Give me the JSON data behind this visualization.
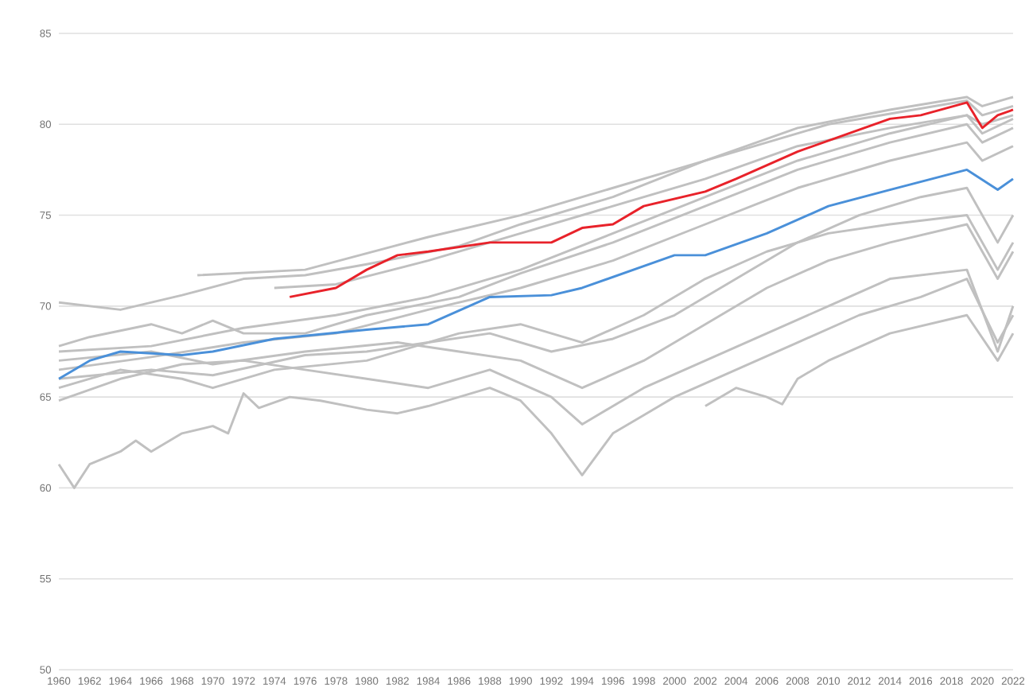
{
  "chart_data": {
    "type": "line",
    "xlim": [
      1960,
      2022
    ],
    "ylim": [
      50,
      85
    ],
    "xticks": [
      1960,
      1962,
      1964,
      1966,
      1968,
      1970,
      1972,
      1974,
      1976,
      1978,
      1980,
      1982,
      1984,
      1986,
      1988,
      1990,
      1992,
      1994,
      1996,
      1998,
      2000,
      2002,
      2004,
      2006,
      2008,
      2010,
      2012,
      2014,
      2016,
      2018,
      2020,
      2022
    ],
    "yticks": [
      50,
      55,
      60,
      65,
      70,
      75,
      80,
      85
    ],
    "grid": "y",
    "series": [
      {
        "color": "#c0c0c0",
        "x": [
          1960,
          1964,
          1968,
          1972,
          1976,
          1980,
          1986,
          1990,
          1996,
          2002,
          2008,
          2014,
          2019,
          2020,
          2022
        ],
        "values": [
          70.2,
          69.8,
          70.6,
          71.5,
          71.7,
          72.3,
          73.3,
          74.5,
          76,
          78,
          79.8,
          80.8,
          81.5,
          81,
          81.5
        ]
      },
      {
        "color": "#c0c0c0",
        "x": [
          1969,
          1976,
          1984,
          1990,
          2000,
          2010,
          2019,
          2020,
          2022
        ],
        "values": [
          71.7,
          72,
          73.8,
          75,
          77.5,
          80,
          81.3,
          80.5,
          81
        ]
      },
      {
        "color": "#c0c0c0",
        "x": [
          1960,
          1962,
          1966,
          1968,
          1970,
          1972,
          1976,
          1980,
          1986,
          1990,
          1996,
          2002,
          2008,
          2014,
          2019,
          2020,
          2022
        ],
        "values": [
          67.8,
          68.3,
          69,
          68.5,
          69.2,
          68.5,
          68.5,
          69.5,
          70.5,
          71.8,
          73.5,
          75.5,
          77.5,
          79,
          80,
          79,
          79.8
        ]
      },
      {
        "color": "#c0c0c0",
        "x": [
          1960,
          1961,
          1962,
          1964,
          1965,
          1966,
          1968,
          1970,
          1971,
          1972,
          1973,
          1975,
          1977,
          1980,
          1982,
          1984,
          1986,
          1988,
          1990,
          1992,
          1994,
          1996,
          1998,
          2000,
          2004,
          2008,
          2012,
          2016,
          2019,
          2021,
          2022
        ],
        "values": [
          61.3,
          60,
          61.3,
          62,
          62.6,
          62,
          63,
          63.4,
          63,
          65.2,
          64.4,
          65,
          64.8,
          64.3,
          64.1,
          64.5,
          65,
          65.5,
          64.8,
          63,
          60.7,
          63,
          64,
          65,
          66.5,
          68,
          69.5,
          70.5,
          71.5,
          68,
          69.5
        ]
      },
      {
        "color": "#c0c0c0",
        "x": [
          1960,
          1964,
          1968,
          1972,
          1976,
          1980,
          1984,
          1988,
          1992,
          1994,
          1996,
          1998,
          2002,
          2006,
          2010,
          2014,
          2019,
          2021,
          2022
        ],
        "values": [
          64.8,
          66,
          66.8,
          67,
          66.5,
          66,
          65.5,
          66.5,
          65,
          63.5,
          64.5,
          65.5,
          67,
          68.5,
          70,
          71.5,
          72,
          67.5,
          70
        ]
      },
      {
        "color": "#c0c0c0",
        "x": [
          2002,
          2004,
          2006,
          2007,
          2008,
          2010,
          2014,
          2019,
          2021,
          2022
        ],
        "values": [
          64.5,
          65.5,
          65,
          64.6,
          66,
          67,
          68.5,
          69.5,
          67,
          68.5
        ]
      },
      {
        "color": "#c0c0c0",
        "x": [
          1960,
          1966,
          1970,
          1976,
          1982,
          1986,
          1990,
          1994,
          1998,
          2002,
          2006,
          2010,
          2014,
          2019,
          2021,
          2022
        ],
        "values": [
          67,
          67.5,
          66.8,
          67.5,
          68,
          67.5,
          67,
          65.5,
          67,
          69,
          71,
          72.5,
          73.5,
          74.5,
          71.5,
          73
        ]
      },
      {
        "color": "#c0c0c0",
        "x": [
          1960,
          1966,
          1972,
          1978,
          1984,
          1990,
          1996,
          2002,
          2008,
          2014,
          2019,
          2020,
          2022
        ],
        "values": [
          67.5,
          67.8,
          68.8,
          69.5,
          70.5,
          72,
          74,
          76,
          78,
          79.5,
          80.5,
          79.5,
          80.3
        ]
      },
      {
        "color": "#c0c0c0",
        "x": [
          1960,
          1966,
          1972,
          1978,
          1984,
          1990,
          1996,
          2002,
          2008,
          2014,
          2019,
          2020,
          2022
        ],
        "values": [
          66.5,
          67.2,
          68,
          68.5,
          69.8,
          71,
          72.5,
          74.5,
          76.5,
          78,
          79,
          78,
          78.8
        ]
      },
      {
        "color": "#c0c0c0",
        "x": [
          1960,
          1966,
          1970,
          1976,
          1980,
          1984,
          1988,
          1992,
          1996,
          2000,
          2004,
          2008,
          2012,
          2016,
          2019,
          2021,
          2022
        ],
        "values": [
          66,
          66.5,
          66.2,
          67.3,
          67.5,
          68,
          68.5,
          67.5,
          68.2,
          69.5,
          71.5,
          73.5,
          75,
          76,
          76.5,
          73.5,
          75
        ]
      },
      {
        "color": "#c0c0c0",
        "x": [
          1974,
          1978,
          1984,
          1990,
          1996,
          2002,
          2008,
          2014,
          2019,
          2020,
          2022
        ],
        "values": [
          71,
          71.2,
          72.5,
          74,
          75.5,
          77,
          78.8,
          79.8,
          80.5,
          80,
          80.5
        ]
      },
      {
        "color": "#c0c0c0",
        "x": [
          1960,
          1964,
          1968,
          1970,
          1974,
          1980,
          1986,
          1990,
          1994,
          1998,
          2002,
          2006,
          2010,
          2014,
          2019,
          2021,
          2022
        ],
        "values": [
          65.5,
          66.5,
          66,
          65.5,
          66.5,
          67,
          68.5,
          69,
          68,
          69.5,
          71.5,
          73,
          74,
          74.5,
          75,
          72,
          73.5
        ]
      },
      {
        "color": "#4a90d9",
        "x": [
          1960,
          1962,
          1964,
          1968,
          1970,
          1974,
          1980,
          1984,
          1988,
          1992,
          1994,
          2000,
          2002,
          2006,
          2010,
          2014,
          2019,
          2021,
          2022
        ],
        "values": [
          66,
          67,
          67.5,
          67.3,
          67.5,
          68.2,
          68.7,
          69,
          70.5,
          70.6,
          71,
          72.8,
          72.8,
          74,
          75.5,
          76.4,
          77.5,
          76.4,
          77
        ]
      },
      {
        "color": "#e8222a",
        "x": [
          1975,
          1978,
          1980,
          1982,
          1984,
          1988,
          1992,
          1994,
          1996,
          1998,
          2002,
          2004,
          2008,
          2012,
          2014,
          2016,
          2019,
          2020,
          2021,
          2022
        ],
        "values": [
          70.5,
          71,
          72,
          72.8,
          73,
          73.5,
          73.5,
          74.3,
          74.5,
          75.5,
          76.3,
          77,
          78.5,
          79.7,
          80.3,
          80.5,
          81.2,
          79.8,
          80.5,
          80.8
        ]
      }
    ]
  }
}
